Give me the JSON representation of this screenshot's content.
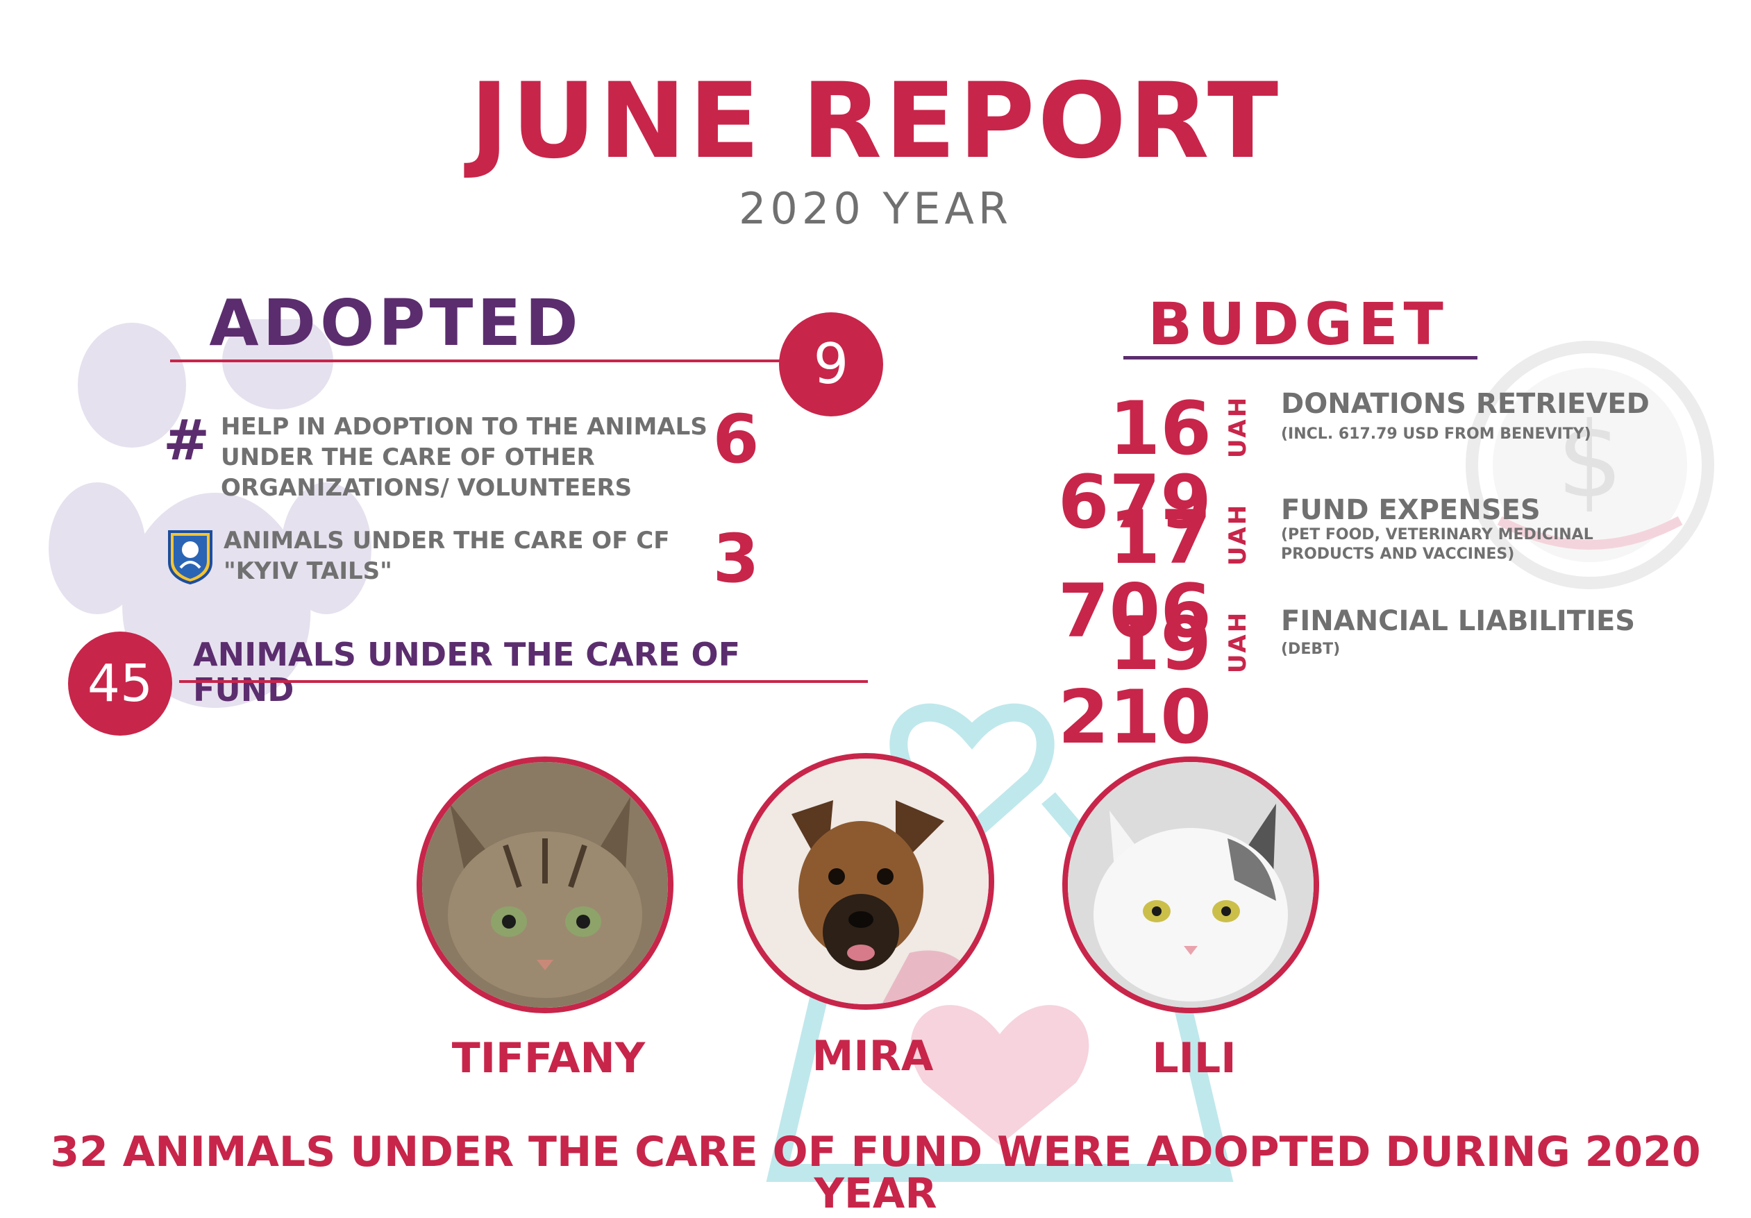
{
  "header": {
    "title": "JUNE REPORT",
    "subtitle": "2020 YEAR"
  },
  "colors": {
    "accent": "#c8254a",
    "purple": "#5b2d6e",
    "grey": "#707070"
  },
  "adopted": {
    "title": "ADOPTED",
    "total": "9",
    "rows": [
      {
        "icon": "hashtag-icon",
        "label": "HELP IN ADOPTION TO THE ANIMALS UNDER THE CARE OF OTHER ORGANIZATIONS/ VOLUNTEERS",
        "value": "6"
      },
      {
        "icon": "kyiv-tails-crest-icon",
        "label": "ANIMALS UNDER THE CARE OF CF \"KYIV TAILS\"",
        "value": "3"
      }
    ],
    "care_count": "45",
    "care_label": "ANIMALS UNDER THE CARE OF FUND"
  },
  "budget": {
    "title": "BUDGET",
    "currency": "UAH",
    "items": [
      {
        "amount": "16 679",
        "label": "DONATIONS RETRIEVED",
        "note": "(INCL. 617.79 USD FROM BENEVITY)"
      },
      {
        "amount": "17 706",
        "label": "FUND EXPENSES",
        "note": "(PET FOOD, VETERINARY MEDICINAL PRODUCTS AND VACCINES)"
      },
      {
        "amount": "19 210",
        "label": "FINANCIAL LIABILITIES",
        "note": "(DEBT)"
      }
    ]
  },
  "animals": [
    {
      "name": "TIFFANY",
      "kind": "tabby-kitten-photo"
    },
    {
      "name": "MIRA",
      "kind": "puppy-photo"
    },
    {
      "name": "LILI",
      "kind": "white-cat-photo"
    }
  ],
  "footer": "32 ANIMALS UNDER THE CARE OF FUND WERE ADOPTED DURING 2020 YEAR"
}
